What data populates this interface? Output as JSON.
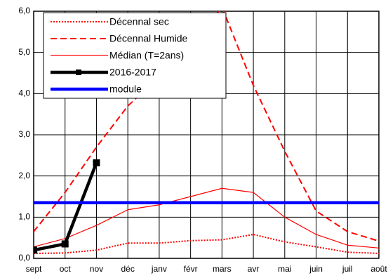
{
  "chart_data": {
    "type": "line",
    "categories": [
      "sept",
      "oct",
      "nov",
      "déc",
      "janv",
      "févr",
      "mars",
      "avr",
      "mai",
      "juin",
      "juil",
      "août"
    ],
    "ylim": [
      0,
      6
    ],
    "yticks": [
      {
        "value": 0,
        "label": "0,0"
      },
      {
        "value": 1,
        "label": "1,0"
      },
      {
        "value": 2,
        "label": "2,0"
      },
      {
        "value": 3,
        "label": "3,0"
      },
      {
        "value": 4,
        "label": "4,0"
      },
      {
        "value": 5,
        "label": "5,0"
      },
      {
        "value": 6,
        "label": "6,0"
      }
    ],
    "grid": true,
    "legend": "top-left",
    "series": [
      {
        "name": "Décennal sec",
        "color": "#ff0000",
        "line_style": "dotted",
        "values": [
          0.12,
          0.13,
          0.2,
          0.37,
          0.37,
          0.43,
          0.45,
          0.58,
          0.4,
          0.28,
          0.15,
          0.12
        ]
      },
      {
        "name": "Décennal Humide",
        "color": "#ff0000",
        "line_style": "dashed",
        "values": [
          0.65,
          1.6,
          2.7,
          3.7,
          4.4,
          5.2,
          6.1,
          4.2,
          2.6,
          1.15,
          0.65,
          0.42
        ]
      },
      {
        "name": "Médian (T=2ans)",
        "color": "#ff0000",
        "line_style": "solid",
        "values": [
          0.28,
          0.48,
          0.8,
          1.18,
          1.3,
          1.5,
          1.7,
          1.6,
          1.0,
          0.58,
          0.32,
          0.25
        ]
      },
      {
        "name": "2016-2017",
        "color": "#000000",
        "line_style": "bold",
        "marker": "square",
        "values": [
          0.2,
          0.35,
          2.32,
          null,
          null,
          null,
          null,
          null,
          null,
          null,
          null,
          null
        ]
      },
      {
        "name": "module",
        "color": "#0000ff",
        "line_style": "thick",
        "values": [
          1.35,
          1.35,
          1.35,
          1.35,
          1.35,
          1.35,
          1.35,
          1.35,
          1.35,
          1.35,
          1.35,
          1.35
        ]
      }
    ]
  }
}
